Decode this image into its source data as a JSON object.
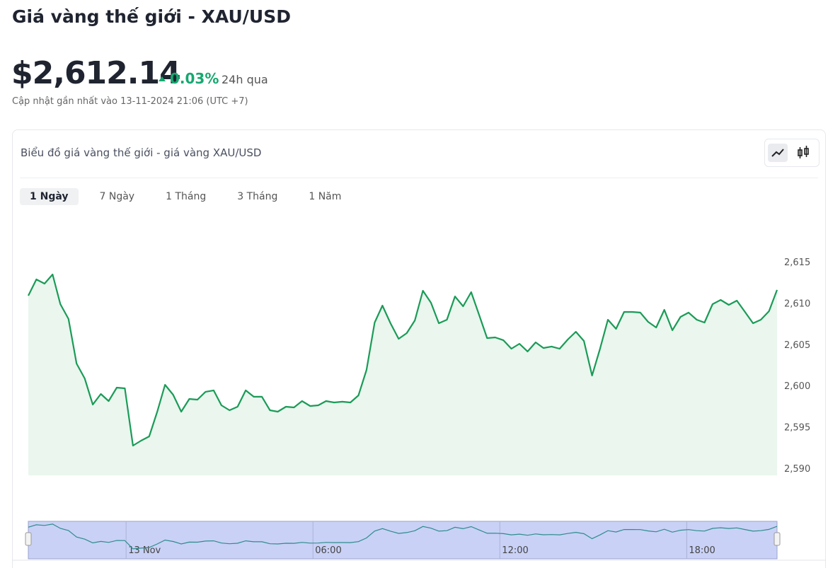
{
  "header": {
    "title": "Giá vàng thế giới - XAU/USD",
    "price": "$2,612.14",
    "change": "0.03%",
    "change_period": "24h qua",
    "updated": "Cập nhật gần nhất vào 13-11-2024 21:06 (UTC +7)"
  },
  "card": {
    "title": "Biểu đồ giá vàng thế giới - giá vàng XAU/USD",
    "tabs": [
      "1 Ngày",
      "7 Ngày",
      "1 Tháng",
      "3 Tháng",
      "1 Năm"
    ]
  },
  "chart_data": {
    "type": "area",
    "color": "#1a9b57",
    "x": [
      -3.14,
      -2.88,
      -2.62,
      -2.36,
      -2.11,
      -1.85,
      -1.59,
      -1.33,
      -1.07,
      -0.81,
      -0.56,
      -0.3,
      -0.04,
      0.22,
      0.48,
      0.74,
      1.0,
      1.25,
      1.51,
      1.77,
      2.03,
      2.29,
      2.55,
      2.81,
      3.06,
      3.32,
      3.58,
      3.84,
      4.1,
      4.36,
      4.62,
      4.87,
      5.13,
      5.39,
      5.65,
      5.91,
      6.17,
      6.42,
      6.68,
      6.94,
      7.2,
      7.46,
      7.72,
      7.98,
      8.23,
      8.49,
      8.75,
      9.01,
      9.27,
      9.53,
      9.79,
      10.04,
      10.3,
      10.56,
      10.82,
      11.08,
      11.34,
      11.59,
      11.85,
      12.11,
      12.37,
      12.63,
      12.89,
      13.15,
      13.4,
      13.66,
      13.92,
      14.18,
      14.44,
      14.7,
      14.96,
      15.21,
      15.47,
      15.73,
      15.99,
      16.25,
      16.51,
      16.76,
      17.02,
      17.28,
      17.54,
      17.8,
      18.06,
      18.32,
      18.57,
      18.83,
      19.09,
      19.35,
      19.61,
      19.87,
      20.13,
      20.38,
      20.64,
      20.9
    ],
    "values": [
      2610.89,
      2612.86,
      2612.35,
      2613.46,
      2609.86,
      2608.07,
      2602.67,
      2600.87,
      2597.71,
      2598.99,
      2598.13,
      2599.76,
      2599.67,
      2592.74,
      2593.34,
      2593.85,
      2596.85,
      2600.1,
      2598.9,
      2596.85,
      2598.39,
      2598.3,
      2599.25,
      2599.42,
      2597.62,
      2597.02,
      2597.45,
      2599.42,
      2598.65,
      2598.65,
      2597.02,
      2596.85,
      2597.45,
      2597.36,
      2598.13,
      2597.53,
      2597.62,
      2598.13,
      2597.96,
      2598.05,
      2597.96,
      2598.82,
      2601.9,
      2607.64,
      2609.69,
      2607.55,
      2605.67,
      2606.35,
      2607.89,
      2611.49,
      2610.03,
      2607.55,
      2607.98,
      2610.8,
      2609.61,
      2611.32,
      2608.49,
      2605.75,
      2605.84,
      2605.5,
      2604.47,
      2605.07,
      2604.13,
      2605.24,
      2604.55,
      2604.73,
      2604.47,
      2605.58,
      2606.52,
      2605.41,
      2601.22,
      2604.38,
      2607.98,
      2606.87,
      2608.92,
      2608.92,
      2608.84,
      2607.72,
      2607.04,
      2609.18,
      2606.7,
      2608.32,
      2608.84,
      2607.98,
      2607.64,
      2609.86,
      2610.38,
      2609.78,
      2610.29,
      2608.92,
      2607.55,
      2607.98,
      2609.01,
      2611.58
    ],
    "xlim": [
      -3.14,
      20.9
    ],
    "xticks": [
      {
        "value": 0,
        "label": "13 Nov"
      },
      {
        "value": 6,
        "label": "06:00"
      },
      {
        "value": 12,
        "label": "12:00"
      },
      {
        "value": 18,
        "label": "18:00"
      }
    ],
    "ylim": [
      2589.14,
      2616.97
    ],
    "yticks": [
      {
        "value": 2590,
        "label": "2,590"
      },
      {
        "value": 2595,
        "label": "2,595"
      },
      {
        "value": 2600,
        "label": "2,600"
      },
      {
        "value": 2605,
        "label": "2,605"
      },
      {
        "value": 2610,
        "label": "2,610"
      },
      {
        "value": 2615,
        "label": "2,615"
      }
    ]
  }
}
